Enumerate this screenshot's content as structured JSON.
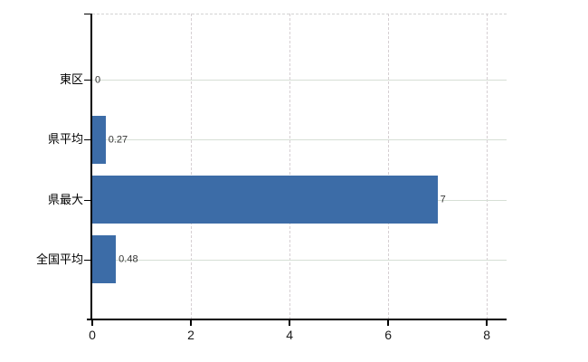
{
  "chart_data": {
    "type": "bar",
    "orientation": "horizontal",
    "categories": [
      "東区",
      "県平均",
      "県最大",
      "全国平均"
    ],
    "values": [
      0,
      0.27,
      7,
      0.48
    ],
    "value_labels": [
      "0",
      "0.27",
      "7",
      "0.48"
    ],
    "x_ticks": [
      0,
      2,
      4,
      6,
      8
    ],
    "xlim": [
      0,
      8.4
    ],
    "title": "",
    "xlabel": "",
    "ylabel": "",
    "legend": "none",
    "grid": {
      "horizontal_style": "solid",
      "vertical_style": "dashed",
      "top_border_style": "dashed"
    }
  },
  "colors": {
    "bar": "#3c6ca7",
    "horizontal_grid": "#d6dfd5",
    "vertical_grid": "#d6cfd3",
    "top_border": "#d3d3d3",
    "axis": "#000000",
    "category_label": "#000000",
    "x_tick_label": "#1a1a1a",
    "value_label": "#333333",
    "background": "#ffffff"
  }
}
